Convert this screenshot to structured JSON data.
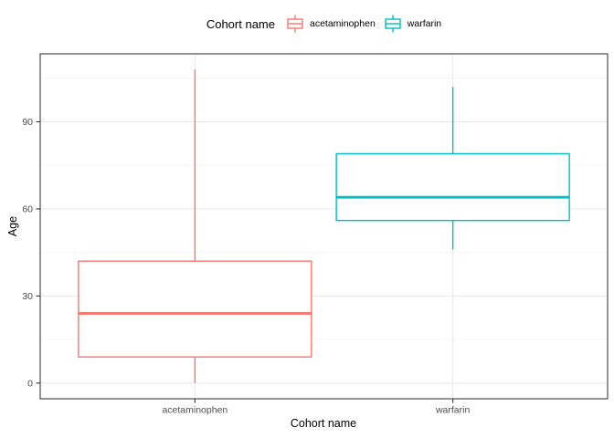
{
  "figure": {
    "background": "#ffffff"
  },
  "legend": {
    "title": "Cohort name",
    "items": [
      {
        "label": "acetaminophen",
        "color": "#F8766D"
      },
      {
        "label": "warfarin",
        "color": "#00BFC4"
      }
    ]
  },
  "axes": {
    "x_title": "Cohort name",
    "y_title": "Age"
  },
  "chart_data": {
    "type": "boxplot",
    "title": "",
    "xlabel": "Cohort name",
    "ylabel": "Age",
    "categories": [
      "acetaminophen",
      "warfarin"
    ],
    "series": [
      {
        "name": "acetaminophen",
        "color": "#F8766D",
        "min": 0,
        "q1": 9,
        "median": 24,
        "q3": 42,
        "max": 108
      },
      {
        "name": "warfarin",
        "color": "#00BFC4",
        "min": 46,
        "q1": 56,
        "median": 64,
        "q3": 79,
        "max": 102
      }
    ],
    "y_ticks": [
      0,
      30,
      60,
      90
    ],
    "y_minor_ticks": [
      15,
      45,
      75,
      105
    ],
    "ylim": [
      -5.4,
      113.4
    ],
    "grid": true,
    "legend_position": "top",
    "box_fill": "#ffffff",
    "panel_border_color": "#4d4d4d",
    "grid_major_color": "#e9e9e9",
    "grid_minor_color": "#f4f4f4",
    "tick_mark_color": "#333333",
    "tick_label_color": "#4d4d4d",
    "axis_title_color": "#000000"
  }
}
